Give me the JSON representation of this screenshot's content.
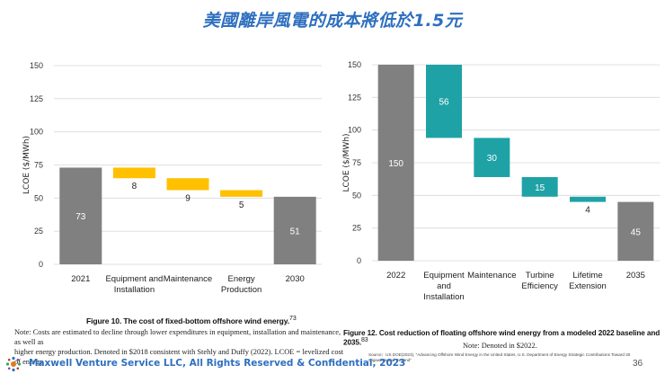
{
  "slide_title": "美國離岸風電的成本將低於1.5元",
  "chart_data": [
    {
      "type": "waterfall",
      "ylabel": "LCOE ($/MWh)",
      "ylim": [
        0,
        150
      ],
      "yticks": [
        "0",
        "25",
        "50",
        "75",
        "100",
        "125",
        "150"
      ],
      "grid": true,
      "categories": [
        "2021",
        "Equipment and Installation",
        "Maintenance",
        "Energy Production",
        "2030"
      ],
      "values": [
        73,
        -8,
        -9,
        -5,
        51
      ],
      "labels": [
        "73",
        "8",
        "9",
        "5",
        "51"
      ],
      "kinds": [
        "total",
        "decrease",
        "decrease",
        "decrease",
        "total"
      ],
      "colors": {
        "total": "#808080",
        "decrease": "#ffc000"
      }
    },
    {
      "type": "waterfall",
      "ylabel": "LCOE ($/MWh)",
      "ylim": [
        0,
        150
      ],
      "yticks": [
        "0",
        "25",
        "50",
        "75",
        "100",
        "125",
        "150"
      ],
      "grid": true,
      "categories": [
        "2022",
        "Equipment and Installation",
        "Maintenance",
        "Turbine Efficiency",
        "Lifetime Extension",
        "2035"
      ],
      "values": [
        150,
        -56,
        -30,
        -15,
        -4,
        45
      ],
      "labels": [
        "150",
        "56",
        "30",
        "15",
        "4",
        "45"
      ],
      "kinds": [
        "total",
        "decrease",
        "decrease",
        "decrease",
        "decrease",
        "total"
      ],
      "colors": {
        "total": "#808080",
        "decrease": "#1fa2a6"
      }
    }
  ],
  "captions": {
    "left_title": "Figure 10. The cost of fixed-bottom offshore wind energy.",
    "left_title_ref": "73",
    "left_note_1": "Note: Costs are estimated to decline through lower expenditures in equipment, installation and maintenance, as well as",
    "left_note_2": "higher energy production. Denoted in $2018 consistent with Stehly and Duffy (2022). LCOE = levelized cost of energy",
    "right_title": "Figure 12. Cost reduction of floating offshore wind energy from a modeled 2022 baseline and 2035.",
    "right_title_ref": "83",
    "right_note": "Note: Denoted in $2022."
  },
  "source": "Source：US DOE(2023), \"Advancing Offshore Wind Energy in the United States, U.S. Department of Energy Strategic Contributions Toward 30 Gigawatts and Beyond\"",
  "footer": {
    "text": "Maxwell Venture Service LLC, All Rights Reserved & Confidential, 2023",
    "page_number": "36"
  }
}
